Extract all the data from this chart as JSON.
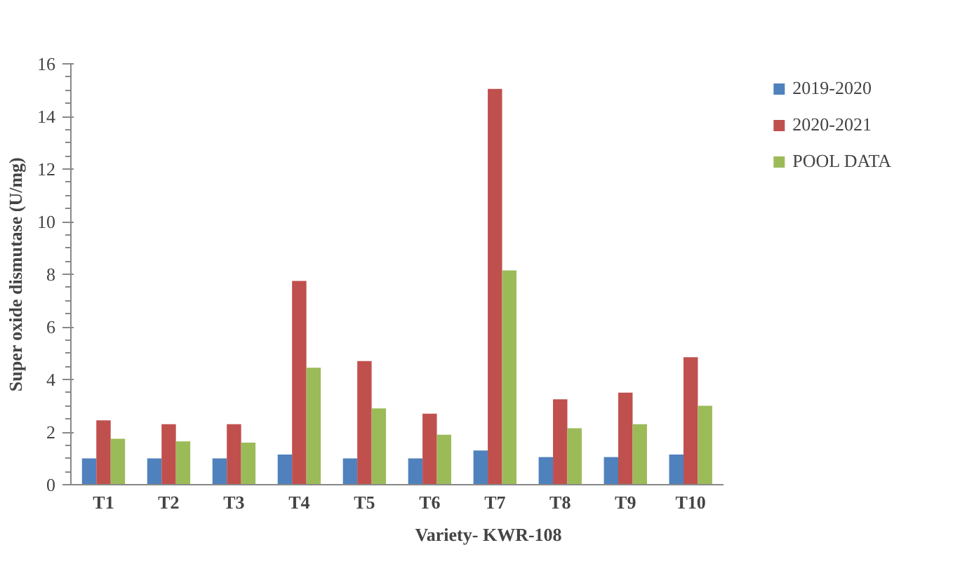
{
  "chart_data": {
    "type": "bar",
    "xlabel": "Variety- KWR-108",
    "ylabel": "Super oxide dismutase (U/mg)",
    "categories": [
      "T1",
      "T2",
      "T3",
      "T4",
      "T5",
      "T6",
      "T7",
      "T8",
      "T9",
      "T10"
    ],
    "series": [
      {
        "name": "2019-2020",
        "color": "#4f81bd",
        "values": [
          1.0,
          1.0,
          1.0,
          1.15,
          1.0,
          1.0,
          1.3,
          1.05,
          1.05,
          1.15
        ]
      },
      {
        "name": "2020-2021",
        "color": "#c0504d",
        "values": [
          2.45,
          2.3,
          2.3,
          7.75,
          4.7,
          2.7,
          15.05,
          3.25,
          3.5,
          4.85
        ]
      },
      {
        "name": "POOL DATA",
        "color": "#9bbb59",
        "values": [
          1.75,
          1.65,
          1.6,
          4.45,
          2.9,
          1.9,
          8.15,
          2.15,
          2.3,
          3.0
        ]
      }
    ],
    "ylim": [
      0,
      16
    ],
    "yticks": [
      0,
      2,
      4,
      6,
      8,
      10,
      12,
      14,
      16
    ],
    "grid": false,
    "legend": "top right"
  }
}
